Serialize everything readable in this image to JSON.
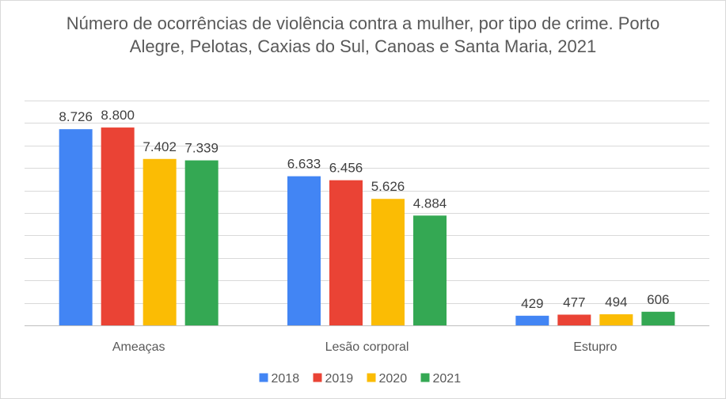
{
  "chart_data": {
    "type": "bar",
    "title": "Número de ocorrências de violência contra a mulher, por tipo de crime. Porto Alegre, Pelotas, Caxias do Sul, Canoas e Santa Maria, 2021",
    "categories": [
      "Ameaças",
      "Lesão corporal",
      "Estupro"
    ],
    "series": [
      {
        "name": "2018",
        "color": "#4285F4",
        "values": [
          8726,
          6633,
          429
        ],
        "labels": [
          "8.726",
          "6.633",
          "429"
        ]
      },
      {
        "name": "2019",
        "color": "#EA4335",
        "values": [
          8800,
          6456,
          477
        ],
        "labels": [
          "8.800",
          "6.456",
          "477"
        ]
      },
      {
        "name": "2020",
        "color": "#FBBC04",
        "values": [
          7402,
          5626,
          494
        ],
        "labels": [
          "7.402",
          "5.626",
          "494"
        ]
      },
      {
        "name": "2021",
        "color": "#34A853",
        "values": [
          7339,
          4884,
          606
        ],
        "labels": [
          "7.339",
          "4.884",
          "606"
        ]
      }
    ],
    "ylim": [
      0,
      10000
    ],
    "grid": true,
    "legend": "bottom"
  }
}
